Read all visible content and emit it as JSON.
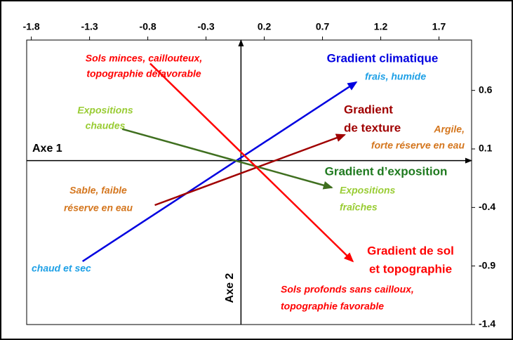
{
  "chart_data": {
    "type": "biplot",
    "xlim": [
      -1.84,
      1.98
    ],
    "ylim": [
      -1.4,
      1.03
    ],
    "xticks": [
      -1.8,
      -1.3,
      -0.8,
      -0.3,
      0.2,
      0.7,
      1.2,
      1.7
    ],
    "yticks": [
      0.6,
      0.1,
      -0.4,
      -0.9,
      -1.4
    ],
    "series": [
      {
        "color": "#0000e0",
        "x": [
          -1.36,
          0.99
        ],
        "y": [
          -0.86,
          0.67
        ]
      },
      {
        "color": "#a00000",
        "x": [
          -0.74,
          0.89
        ],
        "y": [
          -0.38,
          0.22
        ]
      },
      {
        "color": "#3f6f1f",
        "x": [
          -1.02,
          0.78
        ],
        "y": [
          0.27,
          -0.23
        ]
      },
      {
        "color": "#ff0000",
        "x": [
          -0.78,
          0.96
        ],
        "y": [
          0.83,
          -0.86
        ]
      }
    ],
    "annotations": [
      {
        "text": [
          "Sols minces, caillouteux,",
          "topographie défavorable"
        ],
        "color": "#ff0000"
      },
      {
        "text": [
          "Gradient climatique"
        ],
        "color": "#0000e0"
      },
      {
        "text": [
          "frais, humide"
        ],
        "color": "#1ea0e6"
      },
      {
        "text": [
          "Expositions",
          "chaudes"
        ],
        "color": "#99cc33"
      },
      {
        "text": [
          "Gradient",
          "de texture"
        ],
        "color": "#a00000"
      },
      {
        "text": [
          "Argile,",
          "forte réserve en eau"
        ],
        "color": "#d4761e"
      },
      {
        "text": [
          "Axe 1"
        ],
        "color": "#000000"
      },
      {
        "text": [
          "Gradient d’exposition"
        ],
        "color": "#1f7a1f"
      },
      {
        "text": [
          "Expositions",
          "fraîches"
        ],
        "color": "#99cc33"
      },
      {
        "text": [
          "Sable, faible",
          "réserve en eau"
        ],
        "color": "#d4761e"
      },
      {
        "text": [
          "Gradient de sol",
          "et topographie"
        ],
        "color": "#ff0000"
      },
      {
        "text": [
          "Sols profonds sans cailloux,",
          "topographie favorable"
        ],
        "color": "#ff0000"
      },
      {
        "text": [
          "chaud et sec"
        ],
        "color": "#1ea0e6"
      },
      {
        "text": [
          "Axe 2"
        ],
        "color": "#000000"
      }
    ]
  }
}
